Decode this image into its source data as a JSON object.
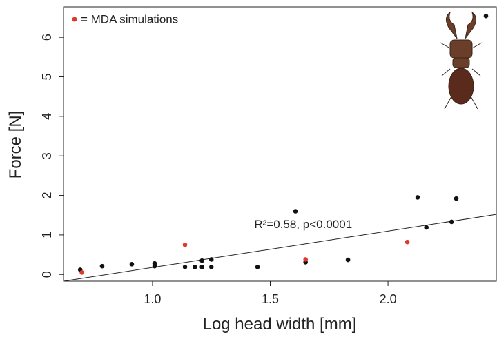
{
  "chart_data": {
    "type": "scatter",
    "xlabel": "Log head width [mm]",
    "ylabel": "Force [N]",
    "xlim": [
      0.622,
      2.46
    ],
    "ylim": [
      -0.17,
      6.77
    ],
    "xticks": [
      {
        "value": 1,
        "label": "1.0"
      },
      {
        "value": 1.5,
        "label": "1.5"
      },
      {
        "value": 2,
        "label": "2.0"
      }
    ],
    "yticks": [
      0,
      1,
      2,
      3,
      4,
      5,
      6
    ],
    "series": [
      {
        "color": "#111111",
        "x": [
          0.693,
          0.786,
          0.912,
          1.009,
          1.009,
          1.138,
          1.18,
          1.21,
          1.21,
          1.25,
          1.25,
          1.446,
          1.607,
          1.65,
          1.83,
          2.126,
          2.163,
          2.27,
          2.29,
          2.416
        ],
        "y": [
          0.12,
          0.21,
          0.26,
          0.28,
          0.21,
          0.19,
          0.19,
          0.19,
          0.35,
          0.38,
          0.19,
          0.19,
          1.6,
          0.31,
          0.37,
          1.95,
          1.19,
          1.33,
          1.92,
          6.54
        ]
      },
      {
        "name": "= MDA simulations",
        "color": "#e0382b",
        "x": [
          0.7,
          1.138,
          1.65,
          2.082
        ],
        "y": [
          0.05,
          0.75,
          0.38,
          0.82
        ]
      }
    ],
    "fit_line": {
      "x": [
        0.622,
        2.46
      ],
      "y": [
        -0.17,
        1.52
      ]
    },
    "annotation": {
      "text": "R²=0.58, p<0.0001",
      "x": 1.64,
      "y": 1.25
    }
  }
}
